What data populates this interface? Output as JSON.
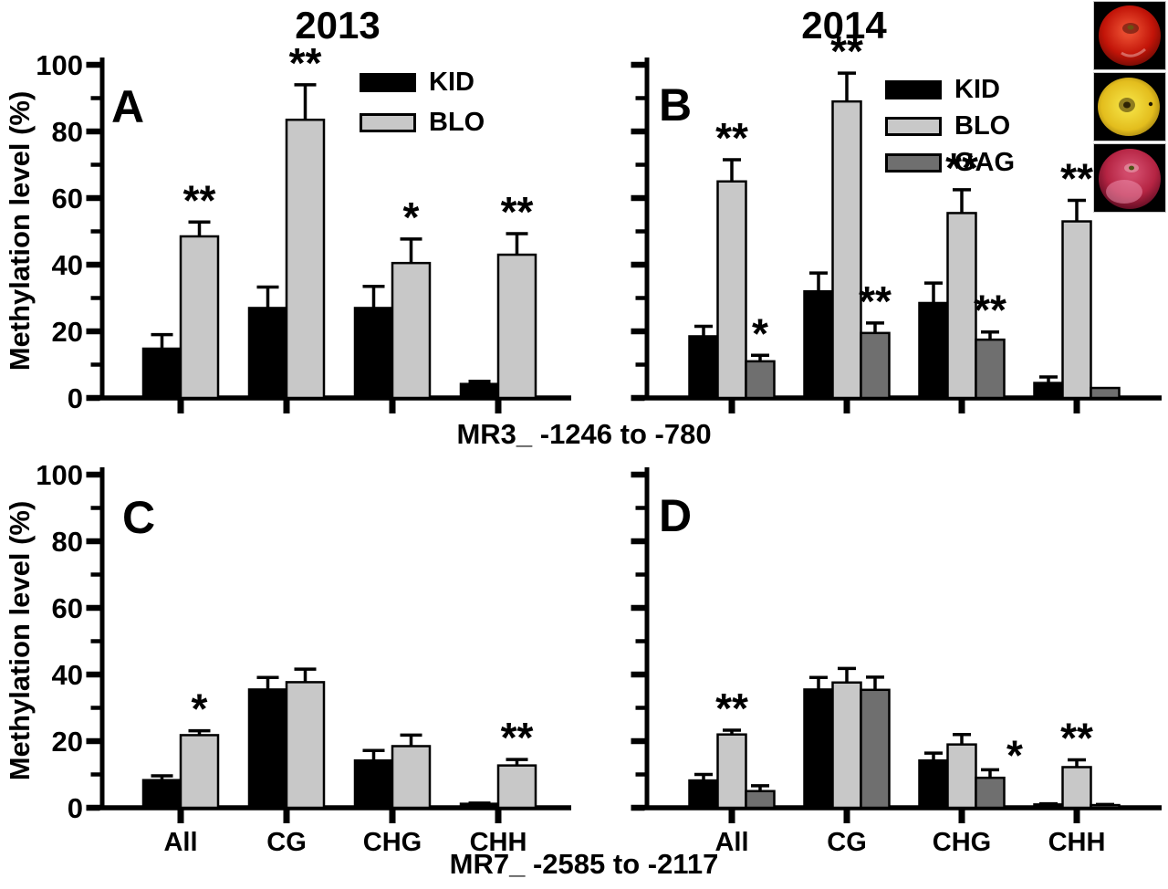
{
  "figure": {
    "col_titles": [
      "2013",
      "2014"
    ],
    "y_axis_title": "Methylation level (%)",
    "region_labels": [
      "MR3_ -1246 to -780",
      "MR7_ -2585 to -2117"
    ],
    "categories": [
      "All",
      "CG",
      "CHG",
      "CHH"
    ],
    "y_ticks": [
      0,
      20,
      40,
      60,
      80,
      100
    ],
    "ylim": [
      0,
      100
    ],
    "series_colors": {
      "KID": "#000000",
      "BLO": "#c8c8c8",
      "GAG": "#6f6f6f"
    },
    "apples": [
      {
        "name": "red-apple-photo",
        "inner": "#e84a2e",
        "body": "#c21408",
        "edge": "#6e0a04"
      },
      {
        "name": "yellow-apple-photo",
        "inner": "#f2dc3e",
        "body": "#e3bd1d",
        "edge": "#97770e"
      },
      {
        "name": "crimson-apple-photo",
        "inner": "#d14a6a",
        "body": "#b52443",
        "edge": "#5f0c22"
      }
    ]
  },
  "chart_data": [
    {
      "panel": "A",
      "type": "bar",
      "title": "2013",
      "xlabel": "MR3_ -1246 to -780",
      "ylabel": "Methylation level (%)",
      "ylim": [
        0,
        100
      ],
      "grid": false,
      "legend_position": "upper right",
      "categories": [
        "All",
        "CG",
        "CHG",
        "CHH"
      ],
      "series": [
        {
          "name": "KID",
          "color": "#000000",
          "values": [
            14.8,
            27.0,
            27.0,
            4.2
          ],
          "errors": [
            4.2,
            6.3,
            6.5,
            0.8
          ]
        },
        {
          "name": "BLO",
          "color": "#c8c8c8",
          "values": [
            48.5,
            83.5,
            40.5,
            43.0
          ],
          "errors": [
            4.3,
            10.5,
            7.2,
            6.3
          ]
        }
      ],
      "significance": [
        {
          "series": "BLO",
          "category": "All",
          "label": "**"
        },
        {
          "series": "BLO",
          "category": "CG",
          "label": "**"
        },
        {
          "series": "BLO",
          "category": "CHG",
          "label": "*"
        },
        {
          "series": "BLO",
          "category": "CHH",
          "label": "**"
        }
      ]
    },
    {
      "panel": "B",
      "type": "bar",
      "title": "2014",
      "xlabel": "MR3_ -1246 to -780",
      "ylabel": "Methylation level (%)",
      "ylim": [
        0,
        100
      ],
      "grid": false,
      "legend_position": "upper middle",
      "categories": [
        "All",
        "CG",
        "CHG",
        "CHH"
      ],
      "series": [
        {
          "name": "KID",
          "color": "#000000",
          "values": [
            18.5,
            32.0,
            28.5,
            4.5
          ],
          "errors": [
            3.0,
            5.5,
            6.0,
            1.8
          ]
        },
        {
          "name": "BLO",
          "color": "#c8c8c8",
          "values": [
            65.0,
            89.0,
            55.5,
            53.0
          ],
          "errors": [
            6.5,
            8.5,
            7.0,
            6.3
          ]
        },
        {
          "name": "GAG",
          "color": "#6f6f6f",
          "values": [
            11.0,
            19.5,
            17.5,
            3.0
          ],
          "errors": [
            1.8,
            3.0,
            2.3,
            0
          ]
        }
      ],
      "significance": [
        {
          "series": "BLO",
          "category": "All",
          "label": "**"
        },
        {
          "series": "BLO",
          "category": "CG",
          "label": "**"
        },
        {
          "series": "BLO",
          "category": "CHG",
          "label": "**"
        },
        {
          "series": "BLO",
          "category": "CHH",
          "label": "**"
        },
        {
          "series": "GAG",
          "category": "All",
          "label": "*"
        },
        {
          "series": "GAG",
          "category": "CG",
          "label": "**"
        },
        {
          "series": "GAG",
          "category": "CHG",
          "label": "**"
        }
      ]
    },
    {
      "panel": "C",
      "type": "bar",
      "title": "2013",
      "xlabel": "MR7_ -2585 to -2117",
      "ylabel": "Methylation level (%)",
      "ylim": [
        0,
        100
      ],
      "grid": false,
      "legend_position": "none",
      "categories": [
        "All",
        "CG",
        "CHG",
        "CHH"
      ],
      "series": [
        {
          "name": "KID",
          "color": "#000000",
          "values": [
            8.3,
            35.5,
            14.2,
            1.2
          ],
          "errors": [
            1.3,
            3.6,
            3.0,
            0.2
          ]
        },
        {
          "name": "BLO",
          "color": "#c8c8c8",
          "values": [
            21.8,
            37.7,
            18.5,
            12.7
          ],
          "errors": [
            1.3,
            3.9,
            3.3,
            1.8
          ]
        }
      ],
      "significance": [
        {
          "series": "BLO",
          "category": "All",
          "label": "*"
        },
        {
          "series": "BLO",
          "category": "CHH",
          "label": "**"
        }
      ]
    },
    {
      "panel": "D",
      "type": "bar",
      "title": "2014",
      "xlabel": "MR7_ -2585 to -2117",
      "ylabel": "Methylation level (%)",
      "ylim": [
        0,
        100
      ],
      "grid": false,
      "legend_position": "none",
      "categories": [
        "All",
        "CG",
        "CHG",
        "CHH"
      ],
      "series": [
        {
          "name": "KID",
          "color": "#000000",
          "values": [
            8.2,
            35.5,
            14.2,
            1.0
          ],
          "errors": [
            1.8,
            3.6,
            2.2,
            0.2
          ]
        },
        {
          "name": "BLO",
          "color": "#c8c8c8",
          "values": [
            22.0,
            37.6,
            19.0,
            12.2
          ],
          "errors": [
            1.3,
            4.2,
            3.0,
            2.2
          ]
        },
        {
          "name": "GAG",
          "color": "#6f6f6f",
          "values": [
            5.0,
            35.4,
            9.0,
            0.8
          ],
          "errors": [
            1.6,
            3.8,
            2.4,
            0.2
          ]
        }
      ],
      "significance": [
        {
          "series": "BLO",
          "category": "All",
          "label": "**"
        },
        {
          "series": "BLO",
          "category": "CHH",
          "label": "**"
        },
        {
          "series": "GAG",
          "category": "CHG",
          "label": "*",
          "dx": 27,
          "dy": 8
        }
      ]
    }
  ]
}
